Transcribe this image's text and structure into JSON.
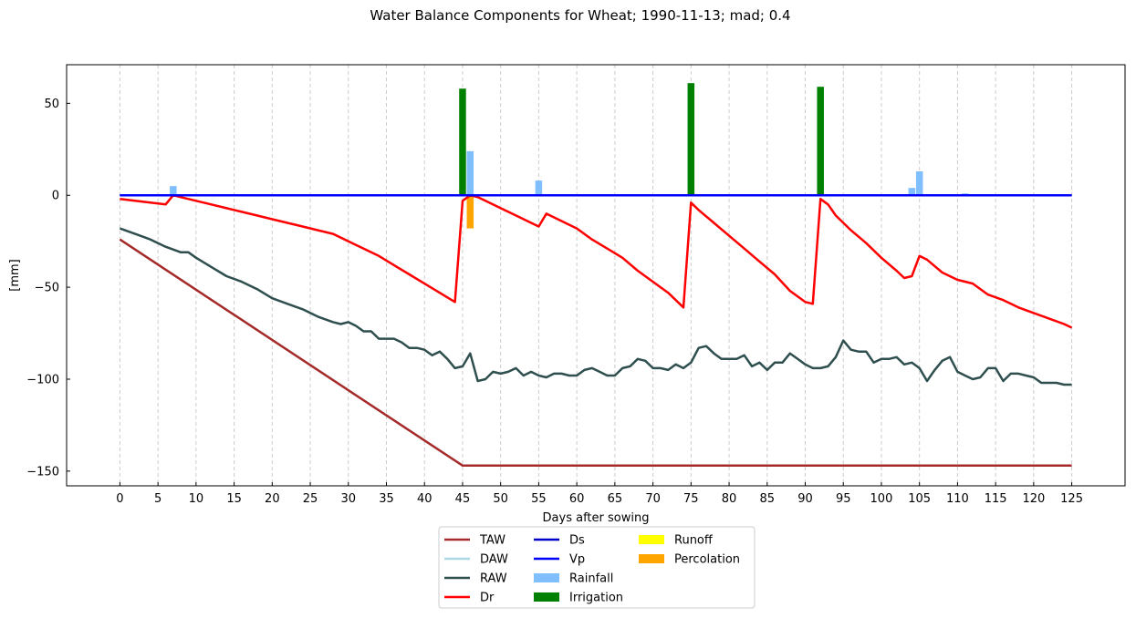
{
  "chart_data": {
    "type": "line",
    "title": "Water Balance Components for Wheat; 1990-11-13; mad; 0.4",
    "xlabel": "Days after sowing",
    "ylabel": "[mm]",
    "xlim": [
      -7,
      132
    ],
    "ylim": [
      -158,
      71
    ],
    "xticks": [
      0,
      5,
      10,
      15,
      20,
      25,
      30,
      35,
      40,
      45,
      50,
      55,
      60,
      65,
      70,
      75,
      80,
      85,
      90,
      95,
      100,
      105,
      110,
      115,
      120,
      125
    ],
    "yticks": [
      50,
      0,
      -50,
      -100,
      -150
    ],
    "ytick_labels": [
      "50",
      "0",
      "−50",
      "−100",
      "−150"
    ],
    "grid": "vertical dashed",
    "legend_position": "below",
    "series": [
      {
        "name": "TAW",
        "kind": "line",
        "color": "#a52a2a",
        "points": [
          [
            0,
            -24
          ],
          [
            45,
            -147
          ],
          [
            125,
            -147
          ]
        ]
      },
      {
        "name": "DAW",
        "kind": "line",
        "color": "#add8e6",
        "points": []
      },
      {
        "name": "RAW",
        "kind": "line",
        "color": "#2f4f4f",
        "points": [
          [
            0,
            -18
          ],
          [
            2,
            -21
          ],
          [
            4,
            -24
          ],
          [
            6,
            -28
          ],
          [
            8,
            -31
          ],
          [
            9,
            -31
          ],
          [
            10,
            -34
          ],
          [
            12,
            -39
          ],
          [
            14,
            -44
          ],
          [
            16,
            -47
          ],
          [
            18,
            -51
          ],
          [
            20,
            -56
          ],
          [
            22,
            -59
          ],
          [
            24,
            -62
          ],
          [
            26,
            -66
          ],
          [
            28,
            -69
          ],
          [
            29,
            -70
          ],
          [
            30,
            -69
          ],
          [
            31,
            -71
          ],
          [
            32,
            -74
          ],
          [
            33,
            -74
          ],
          [
            34,
            -78
          ],
          [
            35,
            -78
          ],
          [
            36,
            -78
          ],
          [
            37,
            -80
          ],
          [
            38,
            -83
          ],
          [
            39,
            -83
          ],
          [
            40,
            -84
          ],
          [
            41,
            -87
          ],
          [
            42,
            -85
          ],
          [
            43,
            -89
          ],
          [
            44,
            -94
          ],
          [
            45,
            -93
          ],
          [
            46,
            -86
          ],
          [
            47,
            -101
          ],
          [
            48,
            -100
          ],
          [
            49,
            -96
          ],
          [
            50,
            -97
          ],
          [
            51,
            -96
          ],
          [
            52,
            -94
          ],
          [
            53,
            -98
          ],
          [
            54,
            -96
          ],
          [
            55,
            -98
          ],
          [
            56,
            -99
          ],
          [
            57,
            -97
          ],
          [
            58,
            -97
          ],
          [
            59,
            -98
          ],
          [
            60,
            -98
          ],
          [
            61,
            -95
          ],
          [
            62,
            -94
          ],
          [
            63,
            -96
          ],
          [
            64,
            -98
          ],
          [
            65,
            -98
          ],
          [
            66,
            -94
          ],
          [
            67,
            -93
          ],
          [
            68,
            -89
          ],
          [
            69,
            -90
          ],
          [
            70,
            -94
          ],
          [
            71,
            -94
          ],
          [
            72,
            -95
          ],
          [
            73,
            -92
          ],
          [
            74,
            -94
          ],
          [
            75,
            -91
          ],
          [
            76,
            -83
          ],
          [
            77,
            -82
          ],
          [
            78,
            -86
          ],
          [
            79,
            -89
          ],
          [
            80,
            -89
          ],
          [
            81,
            -89
          ],
          [
            82,
            -87
          ],
          [
            83,
            -93
          ],
          [
            84,
            -91
          ],
          [
            85,
            -95
          ],
          [
            86,
            -91
          ],
          [
            87,
            -91
          ],
          [
            88,
            -86
          ],
          [
            89,
            -89
          ],
          [
            90,
            -92
          ],
          [
            91,
            -94
          ],
          [
            92,
            -94
          ],
          [
            93,
            -93
          ],
          [
            94,
            -88
          ],
          [
            95,
            -79
          ],
          [
            96,
            -84
          ],
          [
            97,
            -85
          ],
          [
            98,
            -85
          ],
          [
            99,
            -91
          ],
          [
            100,
            -89
          ],
          [
            101,
            -89
          ],
          [
            102,
            -88
          ],
          [
            103,
            -92
          ],
          [
            104,
            -91
          ],
          [
            105,
            -94
          ],
          [
            106,
            -101
          ],
          [
            107,
            -95
          ],
          [
            108,
            -90
          ],
          [
            109,
            -88
          ],
          [
            110,
            -96
          ],
          [
            111,
            -98
          ],
          [
            112,
            -100
          ],
          [
            113,
            -99
          ],
          [
            114,
            -94
          ],
          [
            115,
            -94
          ],
          [
            116,
            -101
          ],
          [
            117,
            -97
          ],
          [
            118,
            -97
          ],
          [
            119,
            -98
          ],
          [
            120,
            -99
          ],
          [
            121,
            -102
          ],
          [
            122,
            -102
          ],
          [
            123,
            -102
          ],
          [
            124,
            -103
          ],
          [
            125,
            -103
          ]
        ]
      },
      {
        "name": "Dr",
        "kind": "line",
        "color": "#ff0000",
        "points": [
          [
            0,
            -2
          ],
          [
            2,
            -3
          ],
          [
            4,
            -4
          ],
          [
            6,
            -5
          ],
          [
            7,
            0
          ],
          [
            8,
            -1
          ],
          [
            10,
            -3
          ],
          [
            12,
            -5
          ],
          [
            14,
            -7
          ],
          [
            16,
            -9
          ],
          [
            18,
            -11
          ],
          [
            20,
            -13
          ],
          [
            22,
            -15
          ],
          [
            24,
            -17
          ],
          [
            26,
            -19
          ],
          [
            28,
            -21
          ],
          [
            30,
            -25
          ],
          [
            32,
            -29
          ],
          [
            34,
            -33
          ],
          [
            36,
            -38
          ],
          [
            38,
            -43
          ],
          [
            40,
            -48
          ],
          [
            42,
            -53
          ],
          [
            44,
            -58
          ],
          [
            45,
            -3
          ],
          [
            46,
            0
          ],
          [
            47,
            -1
          ],
          [
            48,
            -3
          ],
          [
            50,
            -7
          ],
          [
            52,
            -11
          ],
          [
            54,
            -15
          ],
          [
            55,
            -17
          ],
          [
            56,
            -10
          ],
          [
            58,
            -14
          ],
          [
            60,
            -18
          ],
          [
            62,
            -24
          ],
          [
            64,
            -29
          ],
          [
            66,
            -34
          ],
          [
            68,
            -41
          ],
          [
            70,
            -47
          ],
          [
            72,
            -53
          ],
          [
            74,
            -61
          ],
          [
            75,
            -4
          ],
          [
            76,
            -8
          ],
          [
            78,
            -15
          ],
          [
            80,
            -22
          ],
          [
            82,
            -29
          ],
          [
            84,
            -36
          ],
          [
            86,
            -43
          ],
          [
            88,
            -52
          ],
          [
            90,
            -58
          ],
          [
            91,
            -59
          ],
          [
            92,
            -2
          ],
          [
            93,
            -5
          ],
          [
            94,
            -11
          ],
          [
            96,
            -19
          ],
          [
            98,
            -26
          ],
          [
            100,
            -34
          ],
          [
            102,
            -41
          ],
          [
            103,
            -45
          ],
          [
            104,
            -44
          ],
          [
            105,
            -33
          ],
          [
            106,
            -35
          ],
          [
            108,
            -42
          ],
          [
            110,
            -46
          ],
          [
            112,
            -48
          ],
          [
            114,
            -54
          ],
          [
            116,
            -57
          ],
          [
            118,
            -61
          ],
          [
            120,
            -64
          ],
          [
            122,
            -67
          ],
          [
            124,
            -70
          ],
          [
            125,
            -72
          ]
        ]
      },
      {
        "name": "Ds",
        "kind": "line",
        "color": "#0000cd",
        "points": [
          [
            0,
            0
          ],
          [
            125,
            0
          ]
        ]
      },
      {
        "name": "Vp",
        "kind": "line",
        "color": "#0000ff",
        "points": [
          [
            0,
            0
          ],
          [
            125,
            0
          ]
        ]
      },
      {
        "name": "Rainfall",
        "kind": "bar",
        "color": "#7fbfff",
        "bars": [
          [
            7,
            5
          ],
          [
            46,
            24
          ],
          [
            55,
            8
          ],
          [
            104,
            4
          ],
          [
            105,
            13
          ],
          [
            111,
            1
          ]
        ]
      },
      {
        "name": "Irrigation",
        "kind": "bar",
        "color": "#008000",
        "bars": [
          [
            45,
            58
          ],
          [
            75,
            61
          ],
          [
            92,
            59
          ]
        ]
      },
      {
        "name": "Runoff",
        "kind": "bar",
        "color": "#ffff00",
        "bars": []
      },
      {
        "name": "Percolation",
        "kind": "bar",
        "color": "#ffa500",
        "bars": [
          [
            46,
            -18
          ]
        ]
      }
    ],
    "legend": [
      {
        "label": "TAW",
        "kind": "line",
        "color": "#a52a2a"
      },
      {
        "label": "DAW",
        "kind": "line",
        "color": "#add8e6"
      },
      {
        "label": "RAW",
        "kind": "line",
        "color": "#2f4f4f"
      },
      {
        "label": "Dr",
        "kind": "line",
        "color": "#ff0000"
      },
      {
        "label": "Ds",
        "kind": "line",
        "color": "#0000cd"
      },
      {
        "label": "Vp",
        "kind": "line",
        "color": "#0000ff"
      },
      {
        "label": "Rainfall",
        "kind": "patch",
        "color": "#7fbfff"
      },
      {
        "label": "Irrigation",
        "kind": "patch",
        "color": "#008000"
      },
      {
        "label": "Runoff",
        "kind": "patch",
        "color": "#ffff00"
      },
      {
        "label": "Percolation",
        "kind": "patch",
        "color": "#ffa500"
      }
    ]
  }
}
